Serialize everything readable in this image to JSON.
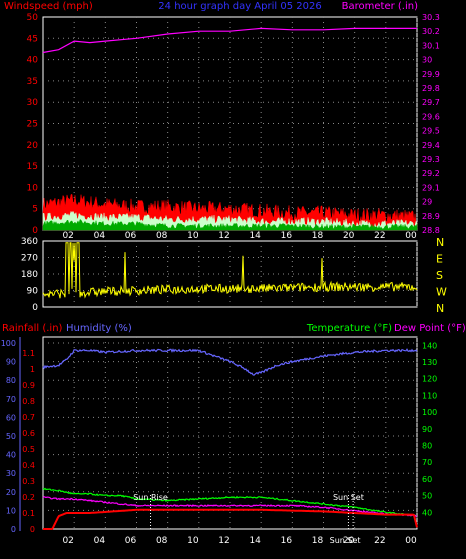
{
  "chart_data": [
    {
      "type": "line",
      "title": "24 hour graph day  April 05 2026",
      "left_axis": {
        "label": "Windspeed (mph)",
        "range": [
          0,
          50
        ],
        "ticks": [
          0,
          5,
          10,
          15,
          20,
          25,
          30,
          35,
          40,
          45,
          50
        ],
        "color": "#ff0000"
      },
      "right_axis": {
        "label": "Barometer (.in)",
        "range": [
          28.8,
          30.3
        ],
        "ticks": [
          "28.8",
          "28.9",
          "29",
          "29.1",
          "29.2",
          "29.3",
          "29.4",
          "29.5",
          "29.6",
          "29.7",
          "29.8",
          "29.9",
          "30",
          "30.1",
          "30.2",
          "30.3"
        ],
        "color": "#ff00ff"
      },
      "x_ticks": [
        "02",
        "04",
        "06",
        "08",
        "10",
        "12",
        "14",
        "16",
        "18",
        "20",
        "22",
        "00"
      ],
      "grid": true,
      "series": [
        {
          "color": "#ff00ff",
          "x": [
            0,
            1,
            2,
            3,
            4,
            6,
            8,
            10,
            12,
            14,
            16,
            18,
            20,
            22,
            24
          ],
          "values": [
            30.05,
            30.07,
            30.13,
            30.12,
            30.13,
            30.15,
            30.18,
            30.2,
            30.2,
            30.22,
            30.21,
            30.21,
            30.22,
            30.22,
            30.22
          ]
        },
        {
          "color": "#ff0000",
          "x": [
            0,
            2,
            4,
            6,
            8,
            10,
            12,
            14,
            16,
            18,
            20,
            22,
            24
          ],
          "values": [
            6,
            7,
            6,
            5.5,
            5.5,
            5,
            5,
            4.5,
            4,
            4,
            3.5,
            3.5,
            3
          ]
        },
        {
          "color": "#ccffcc",
          "x": [
            0,
            2,
            4,
            6,
            8,
            10,
            12,
            14,
            16,
            18,
            20,
            22,
            24
          ],
          "values": [
            3,
            3.5,
            3,
            3,
            2.5,
            2.5,
            2.5,
            2,
            2,
            2,
            1.5,
            1.5,
            1.5
          ]
        },
        {
          "color": "#00aa00",
          "x": [
            0,
            2,
            4,
            6,
            8,
            10,
            12,
            14,
            16,
            18,
            20,
            22,
            24
          ],
          "values": [
            1.5,
            2,
            1.5,
            1.5,
            1,
            1,
            1,
            1,
            1,
            0.8,
            0.8,
            0.8,
            0.8
          ]
        }
      ]
    },
    {
      "type": "line",
      "left_axis": {
        "ticks": [
          0,
          90,
          180,
          270,
          360
        ],
        "range": [
          0,
          360
        ]
      },
      "right_labels": [
        "N",
        "W",
        "S",
        "E",
        "N"
      ],
      "x_ticks": [
        "02",
        "04",
        "06",
        "08",
        "10",
        "12",
        "14",
        "16",
        "18",
        "20",
        "22",
        "00"
      ],
      "grid": true,
      "series": [
        {
          "color": "#ffff00",
          "x": [
            0,
            2,
            4,
            6,
            8,
            10,
            12,
            14,
            16,
            18,
            20,
            22,
            24
          ],
          "values": [
            70,
            75,
            85,
            90,
            95,
            100,
            100,
            100,
            105,
            110,
            110,
            110,
            110
          ]
        }
      ]
    },
    {
      "type": "line",
      "labels": {
        "rainfall": "Rainfall (.in)",
        "humidity": "Humidity (%)",
        "temperature": "Temperature (°F)",
        "dewpoint": "Dew Point (°F)"
      },
      "rain_axis": {
        "ticks": [
          "0",
          "0.1",
          "0.2",
          "0.3",
          "0.4",
          "0.5",
          "0.6",
          "0.7",
          "0.8",
          "0.9",
          "1",
          "1.1"
        ],
        "range": [
          0,
          1.2
        ]
      },
      "humidity_axis": {
        "ticks": [
          0,
          10,
          20,
          30,
          40,
          50,
          60,
          70,
          80,
          90,
          100
        ],
        "range": [
          0,
          100
        ]
      },
      "temp_axis": {
        "ticks": [
          40,
          50,
          60,
          70,
          80,
          90,
          100,
          110,
          120,
          130,
          140
        ],
        "range": [
          30,
          145
        ]
      },
      "x_ticks": [
        "02",
        "04",
        "06",
        "08",
        "10",
        "12",
        "14",
        "16",
        "18",
        "20",
        "22",
        "00"
      ],
      "annotations": [
        {
          "text": "Sun Rise",
          "x": 6.9
        },
        {
          "text": "Sun Set",
          "x": 19.6
        },
        {
          "text": "Sun Set",
          "x": 19.9
        }
      ],
      "grid": true,
      "series": [
        {
          "color": "#6666ff",
          "axis": "humidity",
          "x": [
            0,
            1,
            1.5,
            2,
            3,
            4,
            6,
            8,
            10,
            11,
            12,
            12.5,
            13,
            13.5,
            14,
            14.5,
            15,
            16,
            18,
            20,
            22,
            24
          ],
          "values": [
            87,
            88,
            91,
            96,
            96,
            95,
            96,
            96,
            96,
            93,
            90,
            88,
            86,
            83,
            84,
            86,
            88,
            90,
            93,
            95,
            96,
            96
          ]
        },
        {
          "color": "#00ff00",
          "axis": "temp",
          "x": [
            0,
            1,
            2,
            3,
            4,
            5,
            6,
            8,
            10,
            12,
            14,
            16,
            18,
            20,
            22,
            24
          ],
          "values": [
            54,
            53,
            51,
            51,
            50,
            50,
            48,
            47,
            48,
            49,
            49,
            47,
            45,
            43,
            40,
            38
          ]
        },
        {
          "color": "#ff00ff",
          "axis": "temp",
          "x": [
            0,
            1,
            2,
            3,
            4,
            5,
            6,
            8,
            10,
            12,
            14,
            16,
            18,
            20,
            22,
            24
          ],
          "values": [
            49,
            48,
            48,
            47,
            46,
            45,
            44,
            44,
            44,
            44,
            44,
            44,
            43,
            41,
            39,
            38
          ]
        },
        {
          "color": "#ff0000",
          "axis": "rain",
          "x": [
            0,
            0.6,
            1,
            1.5,
            3,
            6,
            10,
            14,
            18,
            20,
            22,
            23.8,
            24
          ],
          "values": [
            0,
            0,
            0.08,
            0.1,
            0.1,
            0.12,
            0.12,
            0.12,
            0.11,
            0.1,
            0.09,
            0.09,
            0.01
          ]
        }
      ]
    }
  ]
}
